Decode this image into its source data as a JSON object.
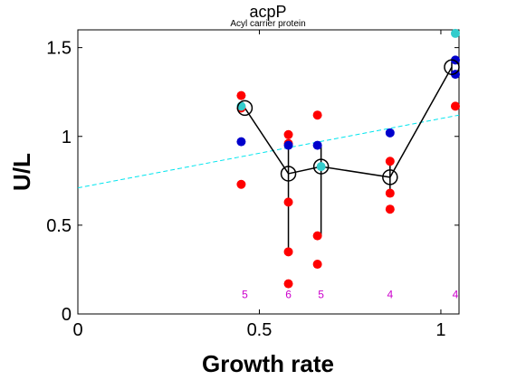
{
  "chart_data": {
    "type": "scatter",
    "title": "acpP",
    "subtitle": "Acyl carrier protein",
    "xlabel": "Growth rate",
    "ylabel": "U/L",
    "xlim": [
      0,
      1.05
    ],
    "ylim": [
      0,
      1.6
    ],
    "xticks": [
      0,
      0.5,
      1
    ],
    "xtick_labels": [
      "0",
      "0.5",
      "1"
    ],
    "yticks": [
      0,
      0.5,
      1,
      1.5
    ],
    "ytick_labels": [
      "0",
      "0.5",
      "1",
      "1.5"
    ],
    "grid": false,
    "colors": {
      "red_points": "#ff0000",
      "blue_points": "#0000cc",
      "cyan_points": "#33cccc",
      "mean_line": "#000000",
      "fit_line": "#00e5ee",
      "count_labels": "#cc00cc"
    },
    "fit_line": {
      "x": [
        0,
        1.05
      ],
      "y": [
        0.71,
        1.12
      ]
    },
    "mean_line": {
      "x": [
        0.46,
        0.58,
        0.67,
        0.86,
        1.03
      ],
      "y": [
        1.16,
        0.79,
        0.83,
        0.77,
        1.39
      ]
    },
    "error_bars": [
      {
        "x": 0.46,
        "low": 1.16,
        "high": 1.16
      },
      {
        "x": 0.58,
        "low": 0.35,
        "high": 0.96
      },
      {
        "x": 0.67,
        "low": 0.44,
        "high": 0.95
      },
      {
        "x": 0.86,
        "low": 0.68,
        "high": 0.86
      },
      {
        "x": 1.03,
        "low": 1.35,
        "high": 1.42
      }
    ],
    "red_points": {
      "x": [
        0.45,
        0.45,
        0.45,
        0.58,
        0.58,
        0.58,
        0.58,
        0.58,
        0.66,
        0.66,
        0.66,
        0.86,
        0.86,
        0.86,
        1.04
      ],
      "y": [
        1.23,
        1.16,
        0.73,
        1.01,
        0.96,
        0.63,
        0.35,
        0.17,
        1.12,
        0.44,
        0.28,
        0.86,
        0.68,
        0.59,
        1.17
      ]
    },
    "blue_points": {
      "x": [
        0.45,
        0.58,
        0.66,
        0.86,
        1.04,
        1.04
      ],
      "y": [
        0.97,
        0.95,
        0.95,
        1.02,
        1.43,
        1.35
      ]
    },
    "cyan_points": {
      "x": [
        0.45,
        0.67,
        1.04
      ],
      "y": [
        1.17,
        0.83,
        1.58
      ]
    },
    "count_labels": [
      {
        "x": 0.46,
        "y": 0.09,
        "text": "5"
      },
      {
        "x": 0.58,
        "y": 0.09,
        "text": "6"
      },
      {
        "x": 0.67,
        "y": 0.09,
        "text": "5"
      },
      {
        "x": 0.86,
        "y": 0.09,
        "text": "4"
      },
      {
        "x": 1.04,
        "y": 0.09,
        "text": "4"
      }
    ]
  }
}
